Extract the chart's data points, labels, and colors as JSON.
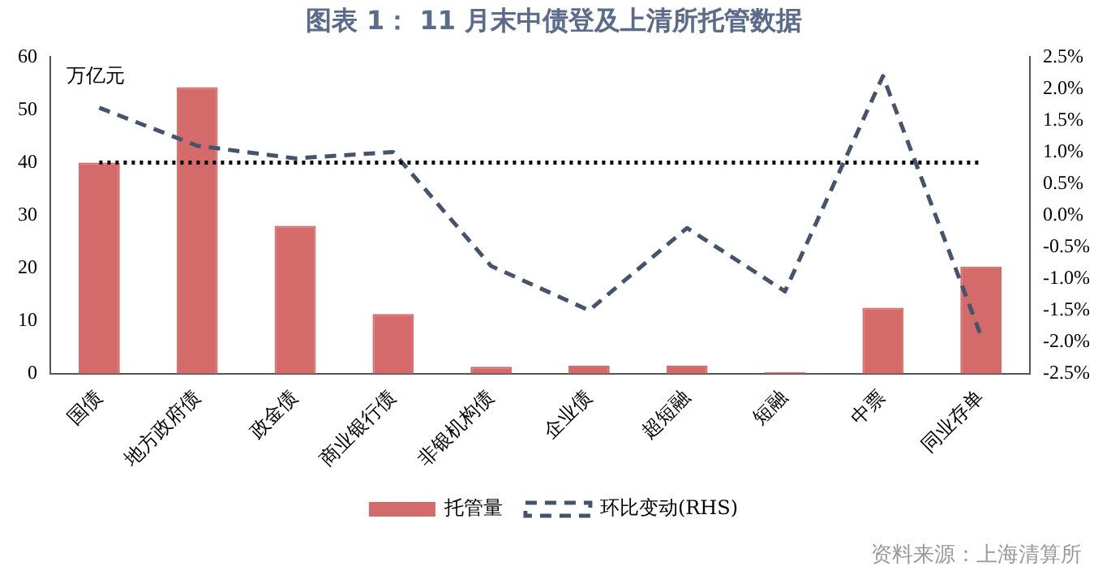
{
  "chart_data": {
    "type": "bar",
    "title": "图表 1： 11 月末中债登及上清所托管数据",
    "ylabel": "万亿元",
    "categories": [
      "国债",
      "地方政府债",
      "政金债",
      "商业银行债",
      "非银机构债",
      "企业债",
      "超短融",
      "短融",
      "中票",
      "同业存单"
    ],
    "series": [
      {
        "name": "托管量",
        "color": "#d46a6a",
        "values": [
          40,
          54.3,
          28,
          11.3,
          1.3,
          1.5,
          1.5,
          0.3,
          12.5,
          20.3
        ]
      },
      {
        "name": "环比变动(RHS)",
        "type": "line",
        "axis": "y2",
        "color": "#44546a",
        "line_style": "dashed",
        "marker": "none",
        "values": [
          1.7,
          1.1,
          0.9,
          1.0,
          -0.8,
          -1.5,
          -0.2,
          -1.2,
          2.2,
          -1.9
        ]
      }
    ],
    "ylim": [
      0,
      60
    ],
    "yticks": [
      0,
      10,
      20,
      30,
      40,
      50,
      60
    ],
    "y2lim": [
      -2.5,
      2.5
    ],
    "y2ticks": [
      {
        "value": -2.5,
        "label": "-2.5%"
      },
      {
        "value": -2,
        "label": "-2.0%"
      },
      {
        "value": -1.5,
        "label": "-1.5%"
      },
      {
        "value": -1,
        "label": "-1.0%"
      },
      {
        "value": -0.5,
        "label": "-0.5%"
      },
      {
        "value": 0,
        "label": "0.0%"
      },
      {
        "value": 0.5,
        "label": "0.5%"
      },
      {
        "value": 1,
        "label": "1.0%"
      },
      {
        "value": 1.5,
        "label": "1.5%"
      },
      {
        "value": 2,
        "label": "2.0%"
      },
      {
        "value": 2.5,
        "label": "2.5%"
      }
    ],
    "ref_lines": [
      {
        "axis": "y",
        "value": 40,
        "color": "#000000",
        "line_style": "dotted"
      }
    ],
    "grid": false,
    "legend": "bottom",
    "annotations": [
      "资料来源：上海清算所"
    ]
  }
}
